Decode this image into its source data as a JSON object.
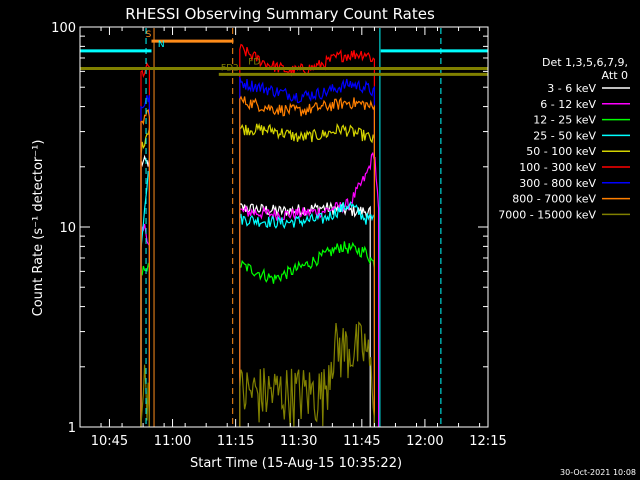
{
  "chart_data": {
    "type": "line",
    "title": "RHESSI Observing Summary Count Rates",
    "ylabel": "Count Rate (s⁻¹ detector⁻¹)",
    "xlabel": "Start Time (15-Aug-15 10:35:22)",
    "yscale": "log",
    "ylim": [
      1,
      100
    ],
    "xlim_minutes": [
      38,
      135
    ],
    "yticks": [
      {
        "v": 1,
        "label": "1"
      },
      {
        "v": 10,
        "label": "10"
      },
      {
        "v": 100,
        "label": "100"
      }
    ],
    "xticks": [
      {
        "m": 45,
        "label": "10:45"
      },
      {
        "m": 60,
        "label": "11:00"
      },
      {
        "m": 75,
        "label": "11:15"
      },
      {
        "m": 90,
        "label": "11:30"
      },
      {
        "m": 105,
        "label": "11:45"
      },
      {
        "m": 120,
        "label": "12:00"
      },
      {
        "m": 135,
        "label": "12:15"
      }
    ],
    "legend_header": [
      "Det 1,3,5,6,7,9,",
      "Att 0"
    ],
    "legend_placement": "right",
    "footer_date": "30-Oct-2021 10:08",
    "series": [
      {
        "name": "3 - 6 keV",
        "color": "#ffffff",
        "segments": [
          [
            [
              52.5,
              21
            ],
            [
              53.5,
              21
            ],
            [
              54.5,
              21
            ]
          ],
          [
            [
              76,
              12.5
            ],
            [
              86,
              12
            ],
            [
              96,
              12.5
            ],
            [
              104,
              12
            ],
            [
              107,
              12
            ]
          ]
        ]
      },
      {
        "name": "6 - 12 keV",
        "color": "#ff00ff",
        "segments": [
          [
            [
              52.5,
              9
            ],
            [
              53.5,
              10
            ],
            [
              54.5,
              8
            ]
          ],
          [
            [
              76,
              12
            ],
            [
              86,
              11.5
            ],
            [
              96,
              12
            ],
            [
              102,
              13
            ],
            [
              106,
              18
            ],
            [
              108,
              24
            ],
            [
              109,
              12
            ]
          ]
        ]
      },
      {
        "name": "12 - 25 keV",
        "color": "#00ff00",
        "segments": [
          [
            [
              52.5,
              5.5
            ],
            [
              53.5,
              6.5
            ],
            [
              54.5,
              6
            ]
          ],
          [
            [
              76,
              6.5
            ],
            [
              84,
              5.5
            ],
            [
              92,
              6.5
            ],
            [
              100,
              8
            ],
            [
              106,
              7.5
            ],
            [
              108,
              6.5
            ]
          ]
        ]
      },
      {
        "name": "25 - 50 keV",
        "color": "#00ffff",
        "segments": [
          [
            [
              52.5,
              8
            ],
            [
              53.5,
              14
            ],
            [
              54.5,
              20
            ]
          ],
          [
            [
              76,
              11
            ],
            [
              86,
              10.5
            ],
            [
              96,
              11
            ],
            [
              102,
              13
            ],
            [
              106,
              11
            ],
            [
              108,
              11
            ]
          ]
        ]
      },
      {
        "name": "50 - 100 keV",
        "color": "#d4d400",
        "segments": [
          [
            [
              52.5,
              24
            ],
            [
              53.5,
              28
            ],
            [
              54.5,
              32
            ]
          ],
          [
            [
              76,
              31
            ],
            [
              84,
              30.5
            ],
            [
              90,
              28
            ],
            [
              96,
              29
            ],
            [
              100,
              31
            ],
            [
              106,
              28.5
            ],
            [
              108,
              27
            ]
          ]
        ]
      },
      {
        "name": "100 - 300 keV",
        "color": "#ff0000",
        "segments": [
          [
            [
              52.5,
              58
            ],
            [
              53.5,
              60
            ],
            [
              54.5,
              64
            ]
          ],
          [
            [
              76,
              78
            ],
            [
              82,
              66
            ],
            [
              88,
              60
            ],
            [
              94,
              63
            ],
            [
              100,
              72
            ],
            [
              106,
              74
            ],
            [
              108,
              68
            ]
          ]
        ]
      },
      {
        "name": "300 - 800 keV",
        "color": "#0000ff",
        "segments": [
          [
            [
              52.5,
              40
            ],
            [
              53.5,
              42
            ],
            [
              54.5,
              45
            ]
          ],
          [
            [
              76,
              53
            ],
            [
              84,
              48
            ],
            [
              90,
              45
            ],
            [
              96,
              47
            ],
            [
              102,
              52
            ],
            [
              106,
              50
            ],
            [
              108,
              47
            ]
          ]
        ]
      },
      {
        "name": "800 - 7000 keV",
        "color": "#ff7f00",
        "segments": [
          [
            [
              52.5,
              32
            ],
            [
              53.5,
              36
            ],
            [
              54.5,
              38
            ]
          ],
          [
            [
              76,
              43
            ],
            [
              84,
              39
            ],
            [
              90,
              38
            ],
            [
              96,
              40
            ],
            [
              102,
              42
            ],
            [
              106,
              41
            ],
            [
              108,
              39
            ]
          ]
        ]
      },
      {
        "name": "7000 - 15000 keV",
        "color": "#808000",
        "segments": [
          [
            [
              52.5,
              1.5
            ],
            [
              53.5,
              1.7
            ],
            [
              54.5,
              1.5
            ]
          ],
          [
            [
              76,
              1.5
            ],
            [
              86,
              1.5
            ],
            [
              96,
              1.5
            ],
            [
              98,
              2.5
            ],
            [
              102,
              2.5
            ],
            [
              106,
              2.5
            ],
            [
              108,
              1.5
            ]
          ]
        ]
      }
    ],
    "flag_bars": [
      {
        "label": "S",
        "color": "#ff8c1a",
        "y": 85,
        "start": 55,
        "end": 74.5
      },
      {
        "label": "N",
        "color": "#00ffff",
        "y": 76,
        "start": 38,
        "end": 55
      },
      {
        "label": "",
        "color": "#00ffff",
        "y": 76,
        "start": 109.5,
        "end": 135
      },
      {
        "label": "FD",
        "color": "#808000",
        "y": 62,
        "start": 38,
        "end": 135
      },
      {
        "label": "FD2",
        "color": "#808000",
        "y": 58,
        "start": 71,
        "end": 135
      }
    ],
    "vlines": [
      {
        "m": 55.6,
        "color": "#ff8c1a",
        "style": "solid"
      },
      {
        "m": 74.3,
        "color": "#ff8c1a",
        "style": "dashed"
      },
      {
        "m": 53.7,
        "color": "#00ffff",
        "style": "dashed"
      },
      {
        "m": 109.3,
        "color": "#00ffff",
        "style": "solid"
      },
      {
        "m": 123.8,
        "color": "#00ffff",
        "style": "dashed"
      }
    ]
  }
}
